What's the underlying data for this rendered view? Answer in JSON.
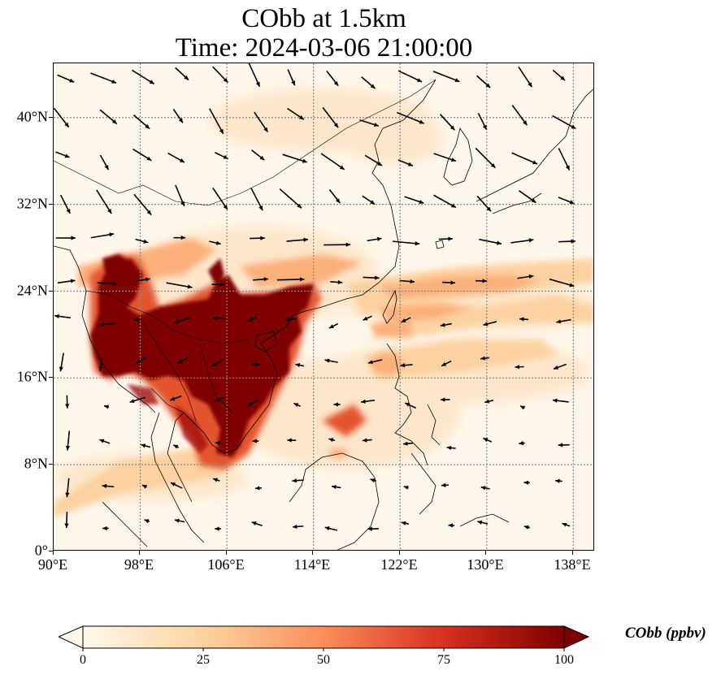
{
  "title_line1": "CObb at 1.5km",
  "title_line2": "Time: 2024-03-06 21:00:00",
  "map": {
    "extent": {
      "lon_min": 90,
      "lon_max": 140,
      "lat_min": 0,
      "lat_max": 45
    },
    "projection": "PlateCarree",
    "gridlines": "dotted",
    "colormap": "OrRd",
    "lat_ticks": [
      "0°",
      "8°N",
      "16°N",
      "24°N",
      "32°N",
      "40°N"
    ],
    "lon_ticks": [
      "90°E",
      "98°E",
      "106°E",
      "114°E",
      "122°E",
      "130°E",
      "138°E"
    ],
    "features": [
      "coastlines",
      "country borders",
      "wind vectors (black arrows)"
    ],
    "high_concentration_region": "Indochina peninsula and southern China (~92–114°E, 10–27°N)",
    "plume": "eastward plume across Taiwan into western Pacific near 20–26°N"
  },
  "colorbar": {
    "label": "CObb (ppbv)",
    "ticks": [
      "0",
      "25",
      "50",
      "75",
      "100"
    ],
    "vmin": 0,
    "vmax": 100,
    "extend": "both",
    "colors": [
      "#fff7ec",
      "#fdd49e",
      "#fc8d59",
      "#d7301f",
      "#7f0000"
    ]
  }
}
